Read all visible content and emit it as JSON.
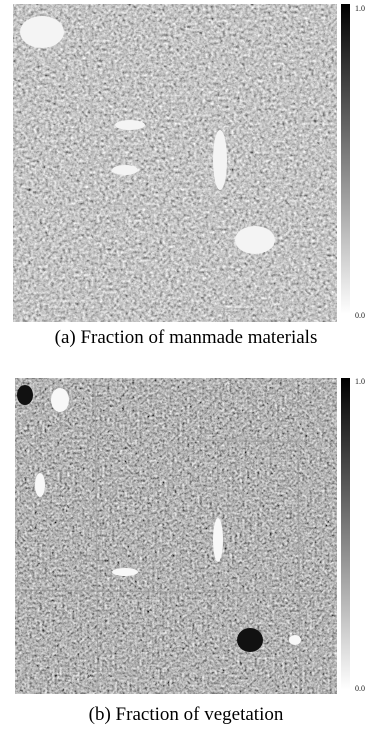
{
  "figure": {
    "panels": [
      {
        "caption": "(a)  Fraction of manmade materials",
        "colorbar": {
          "max": "1.0",
          "min": "0.0"
        }
      },
      {
        "caption": "(b) Fraction of vegetation",
        "colorbar": {
          "max": "1.0",
          "min": "0.0"
        }
      }
    ]
  }
}
